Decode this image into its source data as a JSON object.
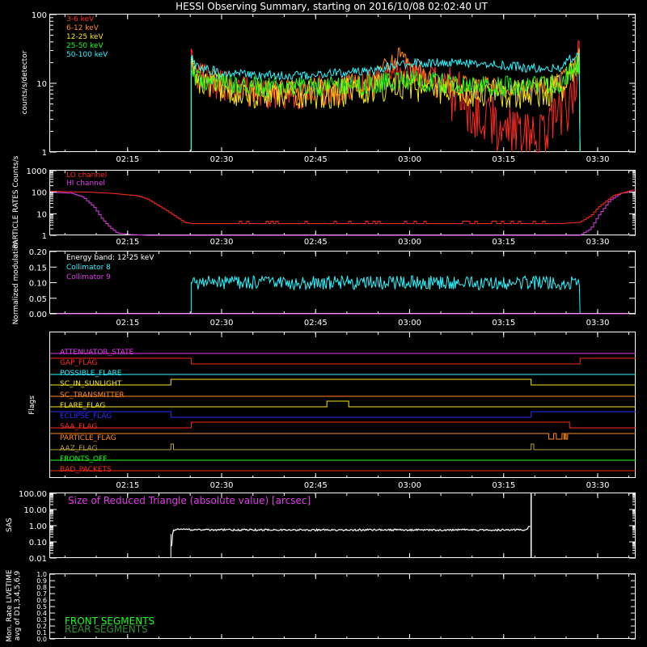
{
  "title": "HESSI Observing Summary, starting on 2016/10/08 02:02:40 UT",
  "colors": {
    "background": "#000000",
    "axes": "#ffffff",
    "red": "#ff2a20",
    "orange": "#ff8a1a",
    "yellow": "#f4e51b",
    "green": "#19ff19",
    "cyan": "#2cf6ff",
    "magenta": "#e03ce8",
    "blue": "#2b2bff",
    "olive": "#b6a244",
    "darkgreen": "#2f8f2f"
  },
  "chart_data": [
    {
      "id": "counts",
      "type": "line",
      "ylabel": "counts/s/detector",
      "yscale": "log",
      "ylim": [
        1,
        100
      ],
      "y_tick_labels": [
        "1",
        "10",
        "100"
      ],
      "x_tick_labels": [
        "02:15",
        "02:30",
        "02:45",
        "03:00",
        "03:15",
        "03:30"
      ],
      "x_ticks_hours": [
        2.25,
        2.5,
        2.75,
        3.0,
        3.25,
        3.5
      ],
      "xlim_hours": [
        2.044,
        3.601
      ],
      "legend_position": "top-left",
      "series": [
        {
          "name": "3-6 keV",
          "color": "#ff2a20",
          "x": [
            2.419,
            2.43,
            2.5,
            2.6,
            2.7,
            2.8,
            2.9,
            3.0,
            3.05,
            3.1,
            3.15,
            3.2,
            3.25,
            3.3,
            3.35,
            3.43,
            3.453
          ],
          "y": [
            20,
            14,
            9,
            7,
            7,
            8,
            10,
            15,
            12,
            8,
            5,
            3,
            2,
            1.5,
            1.5,
            6,
            25
          ]
        },
        {
          "name": "6-12 keV",
          "color": "#ff8a1a",
          "x": [
            2.419,
            2.43,
            2.5,
            2.6,
            2.7,
            2.8,
            2.9,
            2.985,
            3.0,
            3.05,
            3.1,
            3.2,
            3.3,
            3.4,
            3.453
          ],
          "y": [
            20,
            15,
            10,
            8,
            8,
            9,
            11,
            30,
            16,
            11,
            10,
            9,
            8,
            10,
            25
          ]
        },
        {
          "name": "12-25 keV",
          "color": "#f4e51b",
          "x": [
            2.419,
            2.43,
            2.5,
            2.6,
            2.7,
            2.8,
            2.9,
            3.0,
            3.1,
            3.2,
            3.3,
            3.4,
            3.453
          ],
          "y": [
            18,
            12,
            8,
            7,
            7,
            7,
            8,
            9,
            8,
            7,
            7,
            8,
            20
          ]
        },
        {
          "name": "25-50 keV",
          "color": "#19ff19",
          "x": [
            2.419,
            2.43,
            2.5,
            2.6,
            2.7,
            2.8,
            2.9,
            3.0,
            3.1,
            3.2,
            3.3,
            3.4,
            3.453
          ],
          "y": [
            17,
            12,
            10,
            9,
            9,
            9,
            10,
            11,
            10,
            9,
            9,
            10,
            20
          ]
        },
        {
          "name": "50-100 keV",
          "color": "#2cf6ff",
          "x": [
            2.419,
            2.43,
            2.5,
            2.6,
            2.7,
            2.8,
            2.9,
            3.0,
            3.1,
            3.2,
            3.3,
            3.4,
            3.453
          ],
          "y": [
            23,
            18,
            14,
            13,
            13,
            14,
            15,
            20,
            20,
            19,
            17,
            17,
            30
          ]
        }
      ]
    },
    {
      "id": "particle",
      "type": "line",
      "ylabel": "PARTICLE RATES Counts/s",
      "yscale": "log",
      "ylim": [
        1,
        1000
      ],
      "y_tick_labels": [
        "1",
        "10",
        "100",
        "1000"
      ],
      "x_tick_labels": [
        "02:15",
        "02:30",
        "02:45",
        "03:00",
        "03:15",
        "03:30"
      ],
      "legend_position": "top-left",
      "series": [
        {
          "name": "LO channel",
          "color": "#e03ce8",
          "x": [
            2.044,
            2.1,
            2.13,
            2.16,
            2.18,
            2.2,
            2.22,
            2.25,
            2.3,
            3.45,
            3.48,
            3.5,
            3.53,
            3.56,
            3.601
          ],
          "y": [
            100,
            90,
            60,
            20,
            6,
            2.5,
            1.3,
            1.1,
            1,
            1,
            2,
            8,
            40,
            90,
            110
          ]
        },
        {
          "name": "HI channel",
          "color": "#ff2a20",
          "x": [
            2.044,
            2.15,
            2.2,
            2.27,
            2.3,
            2.35,
            2.4,
            2.42,
            2.45,
            3.4,
            3.45,
            3.48,
            3.5,
            3.54,
            3.601
          ],
          "y": [
            110,
            100,
            90,
            70,
            50,
            15,
            4,
            3.5,
            3.5,
            3.5,
            4,
            8,
            20,
            70,
            140
          ]
        }
      ]
    },
    {
      "id": "modulation",
      "type": "line",
      "ylabel": "Normalized modulation",
      "ylim": [
        0,
        0.2
      ],
      "y_tick_labels": [
        "0.00",
        "0.05",
        "0.10",
        "0.15",
        "0.20"
      ],
      "x_tick_labels": [
        "02:15",
        "02:30",
        "02:45",
        "03:00",
        "03:15",
        "03:30"
      ],
      "legend_title": "Energy band: 12-25 keV",
      "legend_position": "top-left",
      "series": [
        {
          "name": "Collimator 8",
          "color": "#2cf6ff",
          "x": [
            2.419,
            3.453
          ],
          "y": [
            0.1,
            0.1
          ]
        },
        {
          "name": "Collimator 9",
          "color": "#e03ce8",
          "x": [
            2.044,
            3.601
          ],
          "y": [
            0,
            0
          ]
        }
      ]
    },
    {
      "id": "flags",
      "type": "line",
      "ylabel": "Flags",
      "x_tick_labels": [
        "02:15",
        "02:30",
        "02:45",
        "03:00",
        "03:15",
        "03:30"
      ],
      "series": [
        {
          "name": "ATTENUATOR_STATE",
          "color": "#e03ce8",
          "edges": [],
          "start_high": false
        },
        {
          "name": "GAP_FLAG",
          "color": "#ff2a20",
          "edges": [
            2.419,
            3.453
          ],
          "start_high": true
        },
        {
          "name": "POSSIBLE_FLARE",
          "color": "#2cf6ff",
          "edges": [],
          "start_high": false
        },
        {
          "name": "SC_IN_SUNLIGHT",
          "color": "#f4e51b",
          "edges": [
            2.365,
            3.323
          ],
          "start_high": false
        },
        {
          "name": "SC_TRANSMITTER",
          "color": "#ff8a1a",
          "edges": [],
          "start_high": false
        },
        {
          "name": "FLARE_FLAG",
          "color": "#f4e51b",
          "edges": [
            2.78,
            2.838
          ],
          "start_high": false
        },
        {
          "name": "ECLIPSE_FLAG",
          "color": "#2b2bff",
          "edges": [
            2.365,
            3.323
          ],
          "start_high": true
        },
        {
          "name": "SAA_FLAG",
          "color": "#ff2a20",
          "edges": [
            2.419,
            3.425
          ],
          "start_high": false
        },
        {
          "name": "PARTICLE_FLAG",
          "color": "#ff8a1a",
          "edges": [
            3.37,
            3.383,
            3.39,
            3.405,
            3.41,
            3.413,
            3.416,
            3.42
          ],
          "start_high": true
        },
        {
          "name": "AAZ_FLAG",
          "color": "#b6a244",
          "edges": [
            2.365,
            2.372,
            3.323,
            3.33
          ],
          "start_high": false
        },
        {
          "name": "FRONTS_OFF",
          "color": "#19ff19",
          "edges": [],
          "start_high": false
        },
        {
          "name": "BAD_PACKETS",
          "color": "#ff2a20",
          "edges": [],
          "start_high": false
        }
      ]
    },
    {
      "id": "sas",
      "type": "line",
      "ylabel": "SAS",
      "yscale": "log",
      "ylim": [
        0.01,
        100
      ],
      "y_tick_labels": [
        "0.01",
        "0.10",
        "1.00",
        "10.00",
        "100.00"
      ],
      "x_tick_labels": [
        "02:15",
        "02:30",
        "02:45",
        "03:00",
        "03:15",
        "03:30"
      ],
      "legend_position": "top-left",
      "series": [
        {
          "name": "Size of Reduced Triangle (absolute value) [arcsec]",
          "color": "#ffffff",
          "x": [
            2.365,
            2.37,
            2.38,
            2.5,
            2.7,
            2.9,
            3.1,
            3.3,
            3.315,
            3.323
          ],
          "y": [
            0.01,
            0.5,
            0.58,
            0.55,
            0.55,
            0.55,
            0.55,
            0.55,
            0.6,
            100
          ]
        }
      ]
    },
    {
      "id": "monitor",
      "type": "line",
      "ylabel": "Mon. Rate LIVETIME avg of D1,3,4,5,6,9",
      "ylim": [
        0,
        1
      ],
      "y_tick_labels": [
        "0.0",
        "0.1",
        "0.2",
        "0.3",
        "0.4",
        "0.5",
        "0.6",
        "0.7",
        "0.8",
        "0.9",
        "1.0"
      ],
      "x_tick_labels": [
        "02:15",
        "02:30",
        "02:45",
        "03:00",
        "03:15",
        "03:30"
      ],
      "legend_position": "bottom-left",
      "series": [
        {
          "name": "FRONT SEGMENTS",
          "color": "#19ff19",
          "x": [],
          "y": []
        },
        {
          "name": "REAR SEGMENTS",
          "color": "#2f8f2f",
          "x": [],
          "y": []
        }
      ]
    }
  ]
}
